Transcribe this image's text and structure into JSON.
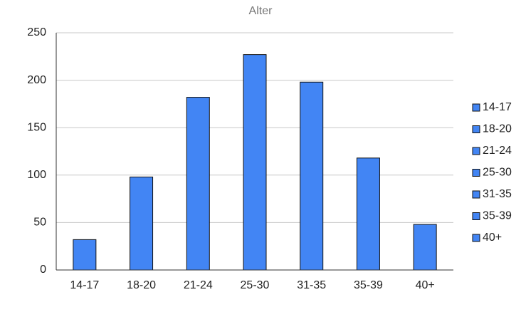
{
  "chart_data": {
    "type": "bar",
    "title": "Alter",
    "categories": [
      "14-17",
      "18-20",
      "21-24",
      "25-30",
      "31-35",
      "35-39",
      "40+"
    ],
    "values": [
      32,
      98,
      182,
      227,
      198,
      118,
      48
    ],
    "color": "#4285f4",
    "ylim": [
      0,
      250
    ],
    "yticks": [
      0,
      50,
      100,
      150,
      200,
      250
    ],
    "grid": true,
    "legend": "right"
  }
}
